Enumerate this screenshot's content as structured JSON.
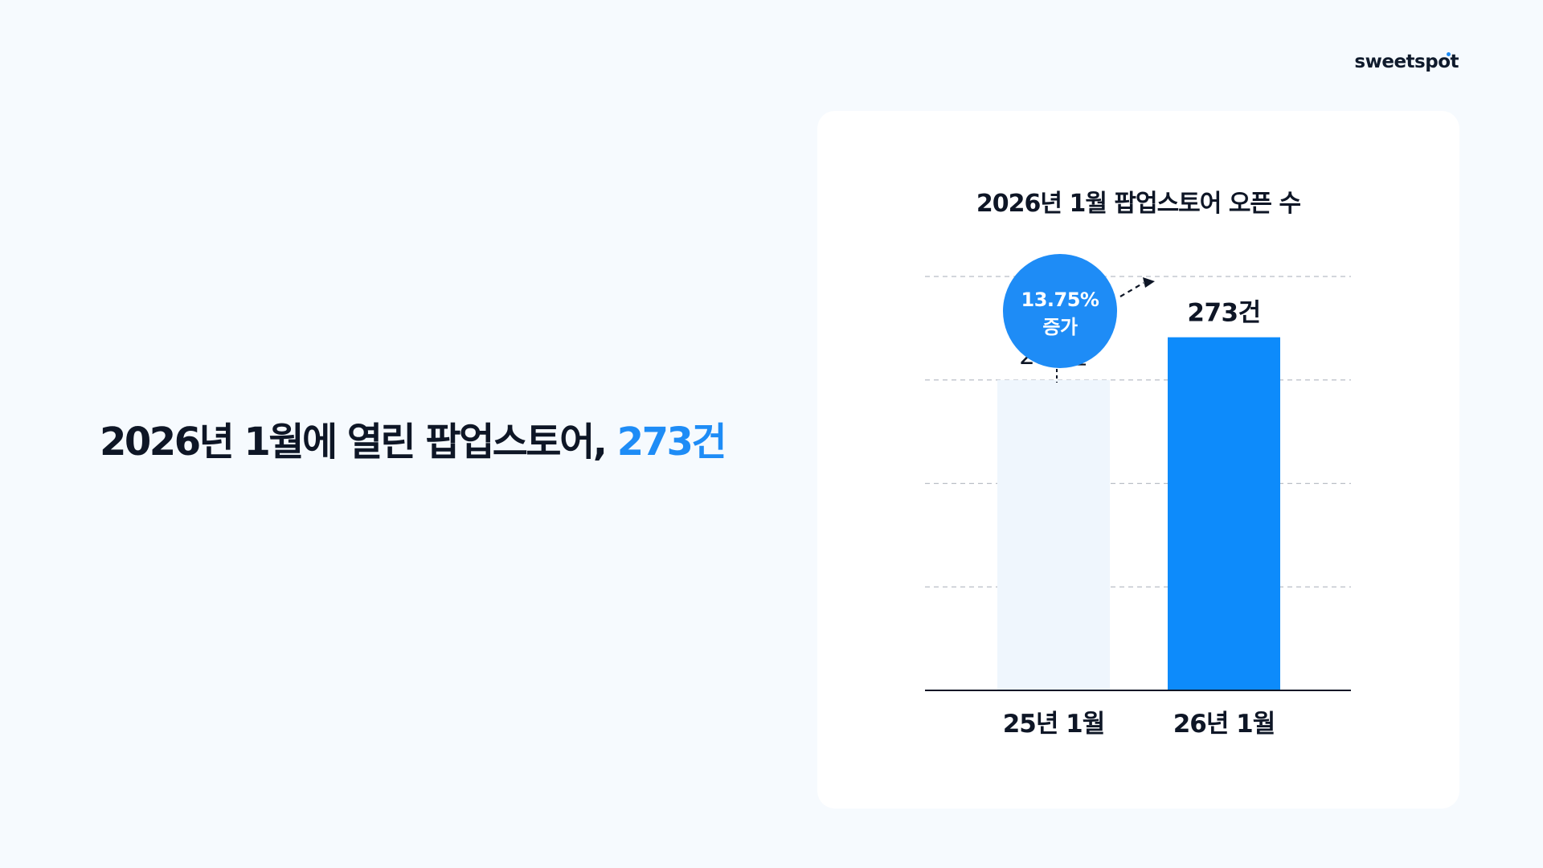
{
  "brand": {
    "logo_text": "sweetspot",
    "accent_color": "#1E8CF6"
  },
  "headline": {
    "prefix": "2026년 1월에 열린 팝업스토어,",
    "highlight": "273건"
  },
  "chart_data": {
    "type": "bar",
    "title": "2026년 1월 팝업스토어 오픈 수",
    "xlabel": "",
    "ylabel": "",
    "categories": [
      "25년 1월",
      "26년 1월"
    ],
    "values": [
      240,
      273
    ],
    "value_labels": [
      "240건",
      "273건"
    ],
    "bar_colors": [
      "#EFF6FD",
      "#0D8BFB"
    ],
    "ylim": [
      0,
      320
    ],
    "grid": true,
    "annotation": {
      "line1": "13.75%",
      "line2": "증가",
      "color": "#1E8CF6"
    }
  }
}
